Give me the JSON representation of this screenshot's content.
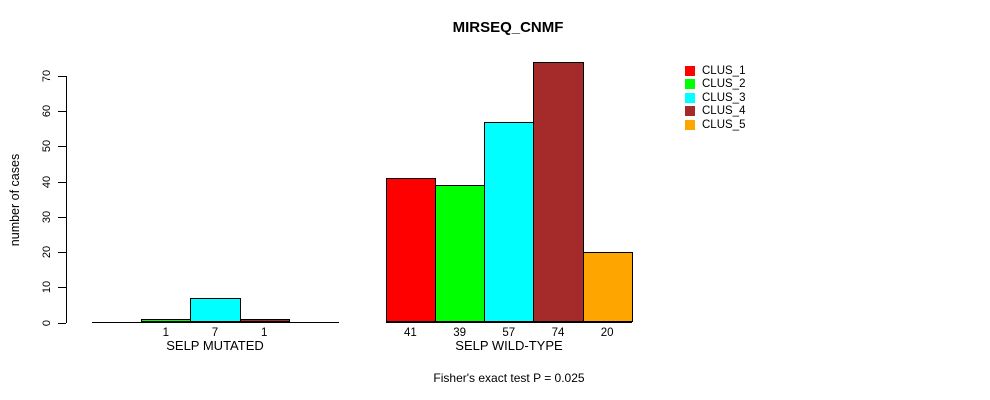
{
  "title": "MIRSEQ_CNMF",
  "footnote": "Fisher's exact test P = 0.025",
  "chart_data": {
    "type": "bar",
    "title": "MIRSEQ_CNMF",
    "ylabel": "number of cases",
    "xlabel": "",
    "ylim": [
      0,
      70
    ],
    "yticks": [
      0,
      10,
      20,
      30,
      40,
      50,
      60,
      70
    ],
    "grid": false,
    "legend_position": "right",
    "groups": [
      "SELP MUTATED",
      "SELP WILD-TYPE"
    ],
    "series": [
      {
        "name": "CLUS_1",
        "color": "#ff0000",
        "values": [
          0,
          41
        ]
      },
      {
        "name": "CLUS_2",
        "color": "#00ff00",
        "values": [
          1,
          39
        ]
      },
      {
        "name": "CLUS_3",
        "color": "#00ffff",
        "values": [
          7,
          57
        ]
      },
      {
        "name": "CLUS_4",
        "color": "#a52a2a",
        "values": [
          1,
          74
        ]
      },
      {
        "name": "CLUS_5",
        "color": "#ffa500",
        "values": [
          0,
          20
        ]
      }
    ],
    "bar_labels": [
      [
        "",
        "1",
        "7",
        "1",
        ""
      ],
      [
        "41",
        "39",
        "57",
        "74",
        "20"
      ]
    ],
    "annotation": "Fisher's exact test P = 0.025"
  },
  "legend": {
    "items": [
      {
        "label": "CLUS_1",
        "color": "#ff0000"
      },
      {
        "label": "CLUS_2",
        "color": "#00ff00"
      },
      {
        "label": "CLUS_3",
        "color": "#00ffff"
      },
      {
        "label": "CLUS_4",
        "color": "#a52a2a"
      },
      {
        "label": "CLUS_5",
        "color": "#ffa500"
      }
    ]
  }
}
